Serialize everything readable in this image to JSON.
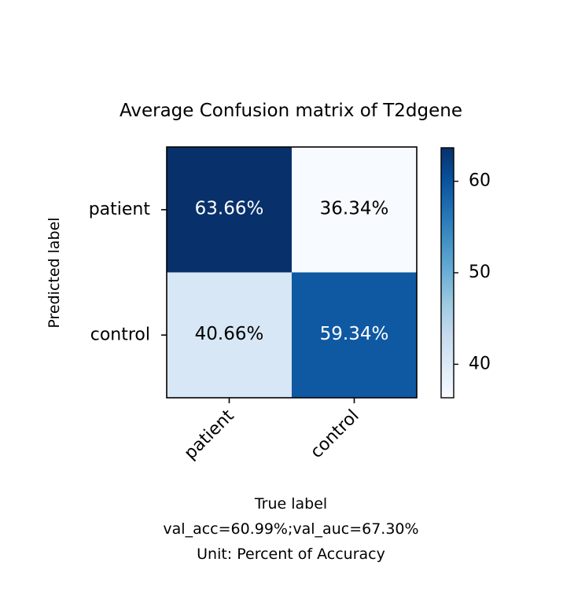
{
  "chart_data": {
    "type": "heatmap",
    "title": "Average Confusion matrix of T2dgene",
    "ylabel": "Predicted label",
    "xlabel_lines": [
      "True label",
      "val_acc=60.99%;val_auc=67.30%",
      "Unit: Percent of Accuracy"
    ],
    "row_labels": [
      "patient",
      "control"
    ],
    "col_labels": [
      "patient",
      "control"
    ],
    "values": [
      [
        63.66,
        36.34
      ],
      [
        40.66,
        59.34
      ]
    ],
    "cell_labels": [
      [
        "63.66%",
        "36.34%"
      ],
      [
        "40.66%",
        "59.34%"
      ]
    ],
    "colormap": "Blues",
    "color_range": [
      36.34,
      63.66
    ],
    "colorbar_ticks": [
      {
        "value": 40,
        "label": "40"
      },
      {
        "value": 50,
        "label": "50"
      },
      {
        "value": 60,
        "label": "60"
      }
    ]
  }
}
